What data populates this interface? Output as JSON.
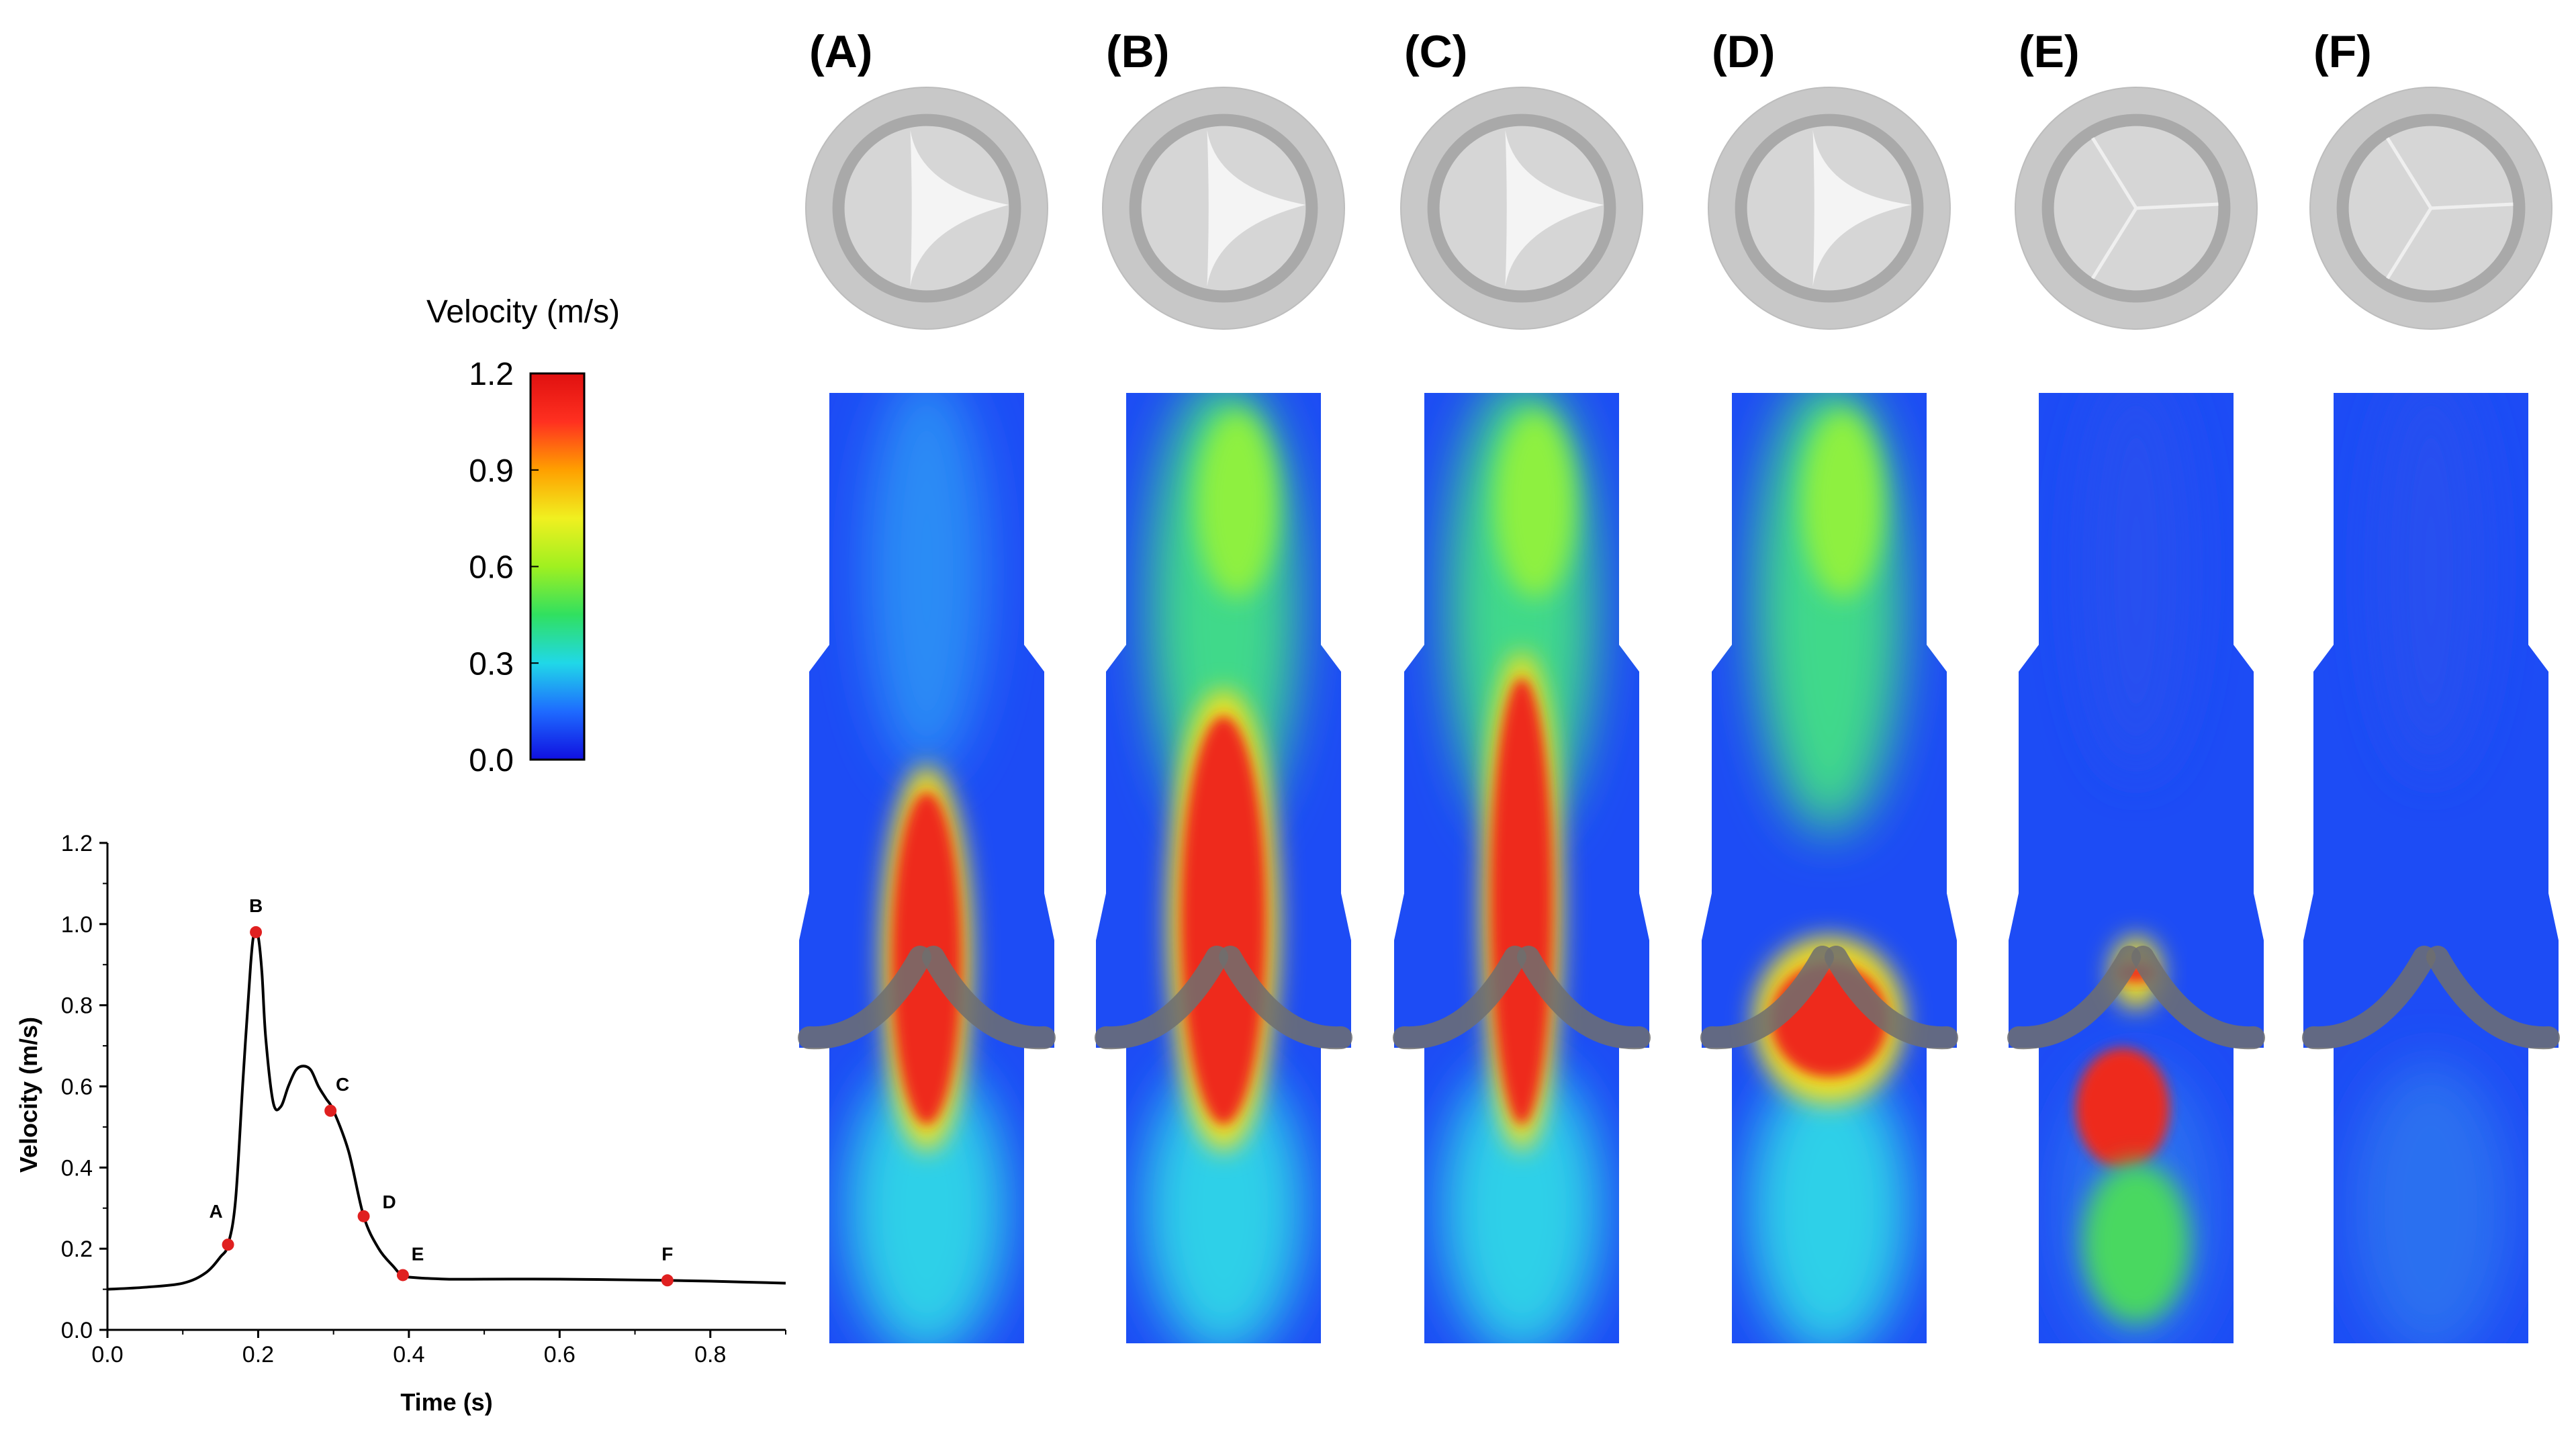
{
  "panels": [
    {
      "label": "(A)",
      "jet": {
        "top": 0.42,
        "bottom": 0.77,
        "width": 0.18
      },
      "sideField": "cyan",
      "downstream": "calm",
      "valve": "open"
    },
    {
      "label": "(B)",
      "jet": {
        "top": 0.34,
        "bottom": 0.77,
        "width": 0.22
      },
      "sideField": "green",
      "downstream": "plume",
      "valve": "open"
    },
    {
      "label": "(C)",
      "jet": {
        "top": 0.3,
        "bottom": 0.77,
        "width": 0.16
      },
      "sideField": "green",
      "downstream": "plume",
      "valve": "open"
    },
    {
      "label": "(D)",
      "jet": {
        "top": 0.6,
        "bottom": 0.72,
        "width": 0.3
      },
      "sideField": "green",
      "downstream": "mixed",
      "valve": "closing"
    },
    {
      "label": "(E)",
      "jet": {
        "top": 0.6,
        "bottom": 0.62,
        "width": 0.1
      },
      "sideField": "blue",
      "downstream": "quiet",
      "valve": "closed"
    },
    {
      "label": "(F)",
      "jet": null,
      "sideField": "blue",
      "downstream": "quiet",
      "valve": "closed"
    }
  ],
  "colorbar": {
    "title": "Velocity (m/s)",
    "ticks": [
      "1.2",
      "0.9",
      "0.6",
      "0.3",
      "0.0"
    ],
    "min": 0.0,
    "max": 1.2,
    "colors": [
      "#1010e0",
      "#1e6bff",
      "#20d8e8",
      "#30e060",
      "#a0f020",
      "#f0f020",
      "#ffa000",
      "#ff3020",
      "#e01010"
    ]
  },
  "chart_data": {
    "type": "line",
    "xlabel": "Time (s)",
    "ylabel": "Velocity (m/s)",
    "xlim": [
      0.0,
      0.9
    ],
    "ylim": [
      0.0,
      1.2
    ],
    "xticks": [
      "0.0",
      "0.2",
      "0.4",
      "0.6",
      "0.8"
    ],
    "yticks": [
      "0.0",
      "0.2",
      "0.4",
      "0.6",
      "0.8",
      "1.0",
      "1.2"
    ],
    "series": [
      {
        "color": "#000000",
        "x": [
          0.0,
          0.05,
          0.1,
          0.13,
          0.15,
          0.16,
          0.17,
          0.18,
          0.19,
          0.195,
          0.2,
          0.205,
          0.21,
          0.22,
          0.23,
          0.24,
          0.25,
          0.26,
          0.27,
          0.28,
          0.29,
          0.3,
          0.32,
          0.34,
          0.36,
          0.38,
          0.39,
          0.4,
          0.45,
          0.5,
          0.6,
          0.7,
          0.74,
          0.8,
          0.9
        ],
        "y": [
          0.1,
          0.105,
          0.115,
          0.14,
          0.18,
          0.21,
          0.32,
          0.62,
          0.9,
          0.98,
          0.97,
          0.88,
          0.72,
          0.56,
          0.55,
          0.6,
          0.64,
          0.65,
          0.64,
          0.6,
          0.57,
          0.54,
          0.44,
          0.28,
          0.2,
          0.155,
          0.135,
          0.13,
          0.125,
          0.125,
          0.125,
          0.123,
          0.122,
          0.12,
          0.115
        ]
      }
    ],
    "points": [
      {
        "label": "A",
        "x": 0.16,
        "y": 0.21
      },
      {
        "label": "B",
        "x": 0.197,
        "y": 0.98
      },
      {
        "label": "C",
        "x": 0.296,
        "y": 0.54
      },
      {
        "label": "D",
        "x": 0.34,
        "y": 0.28
      },
      {
        "label": "E",
        "x": 0.392,
        "y": 0.135
      },
      {
        "label": "F",
        "x": 0.743,
        "y": 0.122
      }
    ],
    "point_color": "#e02020",
    "grid": false
  }
}
